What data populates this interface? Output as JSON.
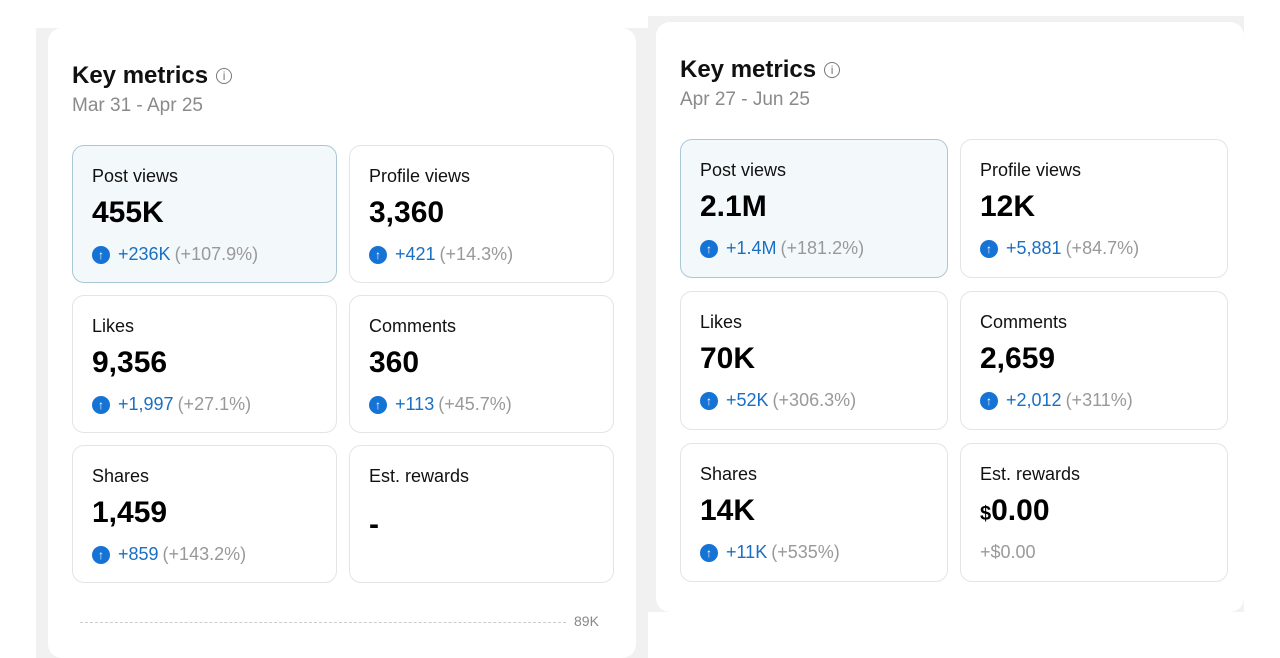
{
  "panels": [
    {
      "title": "Key metrics",
      "date_range": "Mar 31 - Apr 25",
      "tiles": [
        {
          "label": "Post views",
          "value": "455K",
          "delta": "+236K",
          "pct": "(+107.9%)",
          "selected": true
        },
        {
          "label": "Profile views",
          "value": "3,360",
          "delta": "+421",
          "pct": "(+14.3%)"
        },
        {
          "label": "Likes",
          "value": "9,356",
          "delta": "+1,997",
          "pct": "(+27.1%)"
        },
        {
          "label": "Comments",
          "value": "360",
          "delta": "+113",
          "pct": "(+45.7%)"
        },
        {
          "label": "Shares",
          "value": "1,459",
          "delta": "+859",
          "pct": "(+143.2%)"
        },
        {
          "label": "Est. rewards",
          "value": "-"
        }
      ],
      "chart_axis_label": "89K"
    },
    {
      "title": "Key metrics",
      "date_range": "Apr 27 - Jun 25",
      "tiles": [
        {
          "label": "Post views",
          "value": "2.1M",
          "delta": "+1.4M",
          "pct": "(+181.2%)",
          "selected": true
        },
        {
          "label": "Profile views",
          "value": "12K",
          "delta": "+5,881",
          "pct": "(+84.7%)"
        },
        {
          "label": "Likes",
          "value": "70K",
          "delta": "+52K",
          "pct": "(+306.3%)"
        },
        {
          "label": "Comments",
          "value": "2,659",
          "delta": "+2,012",
          "pct": "(+311%)"
        },
        {
          "label": "Shares",
          "value": "14K",
          "delta": "+11K",
          "pct": "(+535%)"
        },
        {
          "label": "Est. rewards",
          "currency": "$",
          "value": "0.00",
          "plain_change": "+$0.00"
        }
      ]
    }
  ],
  "colors": {
    "accent": "#1673d6",
    "selected_bg": "#f3f9fb",
    "muted": "#999999"
  },
  "icons": {
    "info": "info-circle-icon",
    "up": "arrow-up-circle-icon"
  }
}
